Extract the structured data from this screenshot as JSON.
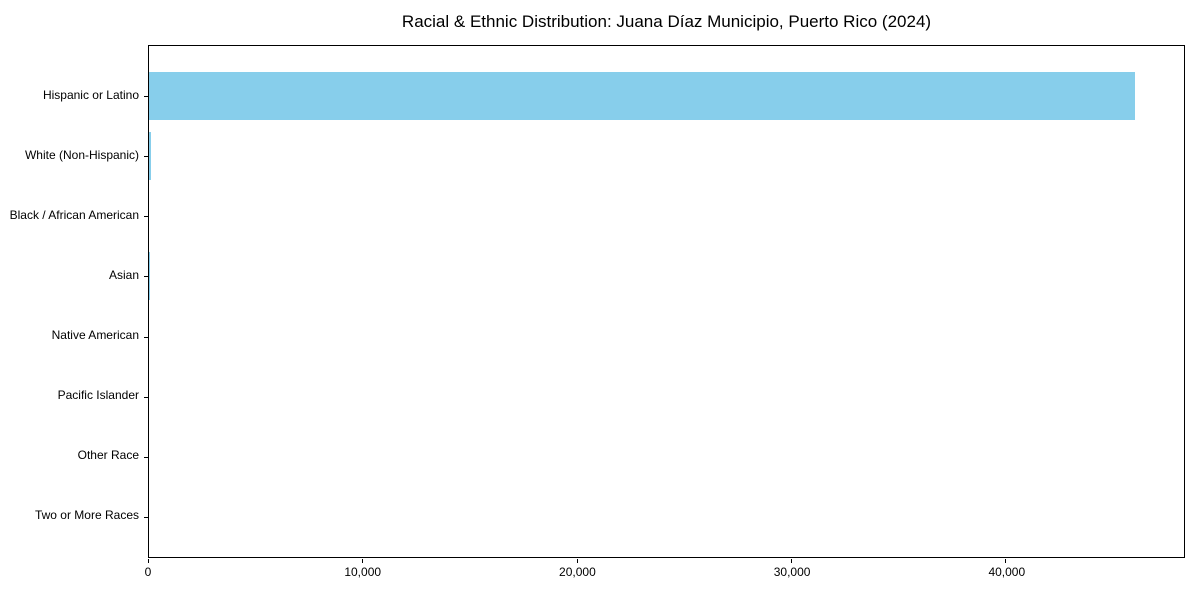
{
  "page": {
    "background_color": "#ffffff",
    "text_color": "#000000"
  },
  "chart_data": {
    "type": "bar",
    "orientation": "horizontal",
    "title": "Racial & Ethnic Distribution: Juana Díaz Municipio, Puerto Rico (2024)",
    "categories": [
      "Hispanic or Latino",
      "White (Non-Hispanic)",
      "Black / African American",
      "Asian",
      "Native American",
      "Pacific Islander",
      "Other Race",
      "Two or More Races"
    ],
    "values": [
      46000,
      100,
      0,
      25,
      0,
      0,
      0,
      0
    ],
    "xlabel": "",
    "ylabel": "",
    "xlim": [
      0,
      48300
    ],
    "xticks": [
      0,
      10000,
      20000,
      30000,
      40000
    ],
    "xtick_labels": [
      "0",
      "10,000",
      "20,000",
      "30,000",
      "40,000"
    ],
    "bar_color": "#87CEEB",
    "axis_color": "#000000",
    "grid": false,
    "legend": null
  }
}
